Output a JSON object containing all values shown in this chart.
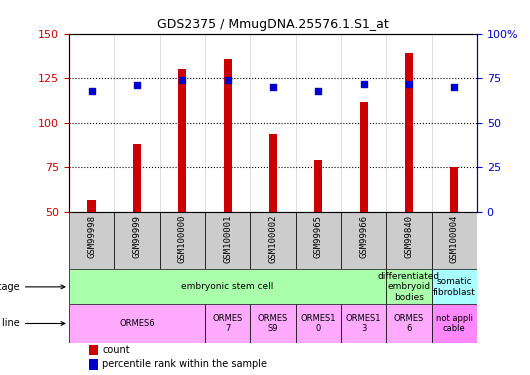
{
  "title": "GDS2375 / MmugDNA.25576.1.S1_at",
  "samples": [
    "GSM99998",
    "GSM99999",
    "GSM100000",
    "GSM100001",
    "GSM100002",
    "GSM99965",
    "GSM99966",
    "GSM99840",
    "GSM100004"
  ],
  "counts": [
    57,
    88,
    130,
    136,
    94,
    79,
    112,
    139,
    75
  ],
  "percentiles": [
    68,
    71,
    74,
    74,
    70,
    68,
    72,
    72,
    70
  ],
  "ylim_left": [
    50,
    150
  ],
  "ylim_right": [
    0,
    100
  ],
  "yticks_left": [
    50,
    75,
    100,
    125,
    150
  ],
  "yticks_right": [
    0,
    25,
    50,
    75,
    100
  ],
  "bar_color": "#CC0000",
  "dot_color": "#0000CC",
  "hline_values": [
    75,
    100,
    125
  ],
  "dev_stage_groups": [
    {
      "label": "embryonic stem cell",
      "start": 0,
      "end": 7,
      "color": "#aaffaa"
    },
    {
      "label": "differentiated\nembryoid\nbodies",
      "start": 7,
      "end": 8,
      "color": "#aaffaa"
    },
    {
      "label": "somatic\nfibroblast",
      "start": 8,
      "end": 9,
      "color": "#aaffff"
    }
  ],
  "cell_line_groups": [
    {
      "label": "ORMES6",
      "start": 0,
      "end": 3,
      "color": "#ffaaff"
    },
    {
      "label": "ORMES\n7",
      "start": 3,
      "end": 4,
      "color": "#ffaaff"
    },
    {
      "label": "ORMES\nS9",
      "start": 4,
      "end": 5,
      "color": "#ffaaff"
    },
    {
      "label": "ORMES1\n0",
      "start": 5,
      "end": 6,
      "color": "#ffaaff"
    },
    {
      "label": "ORMES1\n3",
      "start": 6,
      "end": 7,
      "color": "#ffaaff"
    },
    {
      "label": "ORMES\n6",
      "start": 7,
      "end": 8,
      "color": "#ffaaff"
    },
    {
      "label": "not appli\ncable",
      "start": 8,
      "end": 9,
      "color": "#ff88ff"
    }
  ],
  "legend_items": [
    {
      "label": "count",
      "color": "#CC0000"
    },
    {
      "label": "percentile rank within the sample",
      "color": "#0000CC"
    }
  ],
  "background_color": "#ffffff",
  "tick_label_color_left": "#CC0000",
  "tick_label_color_right": "#0000CC",
  "bar_width": 0.18,
  "xlim": [
    -0.5,
    8.5
  ],
  "xticklabel_bg": "#cccccc"
}
